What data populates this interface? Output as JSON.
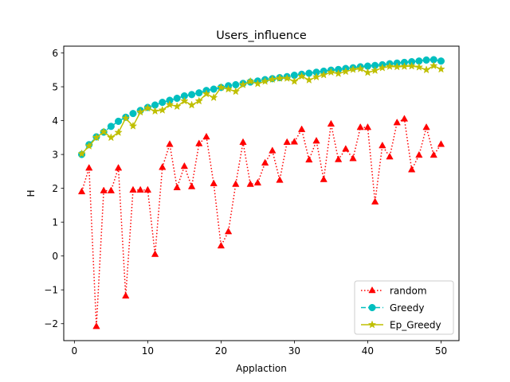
{
  "chart_data": {
    "type": "line",
    "title": "Users_influence",
    "xlabel": "Applaction",
    "ylabel": "H",
    "xlim": [
      -1.45,
      52.45
    ],
    "ylim": [
      -2.5,
      6.2
    ],
    "xticks": [
      0,
      10,
      20,
      30,
      40,
      50
    ],
    "yticks": [
      -2,
      -1,
      0,
      1,
      2,
      3,
      4,
      5,
      6
    ],
    "grid": false,
    "legend_position": "lower-right",
    "x": [
      1,
      2,
      3,
      4,
      5,
      6,
      7,
      8,
      9,
      10,
      11,
      12,
      13,
      14,
      15,
      16,
      17,
      18,
      19,
      20,
      21,
      22,
      23,
      24,
      25,
      26,
      27,
      28,
      29,
      30,
      31,
      32,
      33,
      34,
      35,
      36,
      37,
      38,
      39,
      40,
      41,
      42,
      43,
      44,
      45,
      46,
      47,
      48,
      49,
      50
    ],
    "series": [
      {
        "name": "random",
        "color": "#ff0000",
        "linestyle": "dotted",
        "marker": "triangle",
        "values": [
          1.9,
          2.6,
          -2.08,
          1.93,
          1.93,
          2.6,
          -1.18,
          1.95,
          1.95,
          1.95,
          0.05,
          2.62,
          3.3,
          2.02,
          2.65,
          2.05,
          3.32,
          3.52,
          2.14,
          0.3,
          0.72,
          2.12,
          3.36,
          2.12,
          2.16,
          2.75,
          3.11,
          2.24,
          3.36,
          3.37,
          3.74,
          2.84,
          3.4,
          2.26,
          3.9,
          2.85,
          3.16,
          2.88,
          3.8,
          3.8,
          1.6,
          3.26,
          2.93,
          3.94,
          4.05,
          2.55,
          2.98,
          3.8,
          2.98,
          3.3
        ]
      },
      {
        "name": "Greedy",
        "color": "#00bfbf",
        "linestyle": "dashed",
        "marker": "circle",
        "values": [
          3.0,
          3.29,
          3.52,
          3.66,
          3.83,
          3.98,
          4.1,
          4.21,
          4.3,
          4.39,
          4.46,
          4.54,
          4.6,
          4.66,
          4.73,
          4.77,
          4.82,
          4.89,
          4.93,
          4.98,
          5.03,
          5.06,
          5.1,
          5.14,
          5.17,
          5.21,
          5.24,
          5.27,
          5.3,
          5.34,
          5.37,
          5.4,
          5.43,
          5.46,
          5.49,
          5.51,
          5.54,
          5.56,
          5.59,
          5.61,
          5.63,
          5.65,
          5.68,
          5.7,
          5.72,
          5.74,
          5.76,
          5.79,
          5.8,
          5.76
        ]
      },
      {
        "name": "Ep_Greedy",
        "color": "#bfbf00",
        "linestyle": "solid",
        "marker": "star",
        "values": [
          3.02,
          3.25,
          3.5,
          3.67,
          3.5,
          3.65,
          4.07,
          3.84,
          4.25,
          4.37,
          4.28,
          4.31,
          4.47,
          4.42,
          4.58,
          4.46,
          4.58,
          4.79,
          4.68,
          4.98,
          4.93,
          4.86,
          5.06,
          5.16,
          5.09,
          5.16,
          5.22,
          5.25,
          5.25,
          5.16,
          5.31,
          5.2,
          5.29,
          5.35,
          5.43,
          5.39,
          5.45,
          5.51,
          5.53,
          5.42,
          5.48,
          5.56,
          5.6,
          5.59,
          5.6,
          5.61,
          5.58,
          5.5,
          5.62,
          5.52
        ]
      }
    ]
  }
}
